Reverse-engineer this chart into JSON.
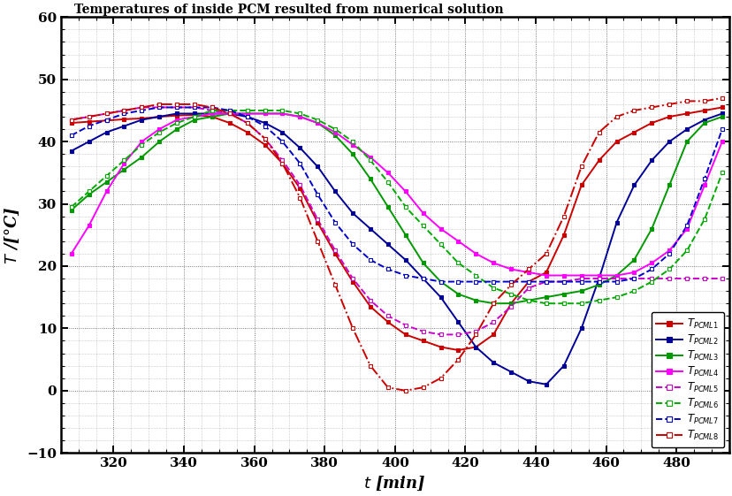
{
  "title": "Temperatures of inside PCM resulted from numerical solution",
  "xlabel": "t [min]",
  "ylabel": "T /[°C]",
  "xlim": [
    305,
    495
  ],
  "ylim": [
    -10,
    60
  ],
  "xticks": [
    320,
    340,
    360,
    380,
    400,
    420,
    440,
    460,
    480
  ],
  "yticks": [
    -10,
    0,
    10,
    20,
    30,
    40,
    50,
    60
  ],
  "series": [
    {
      "label": "PCML1",
      "color": "#CC0000",
      "linestyle": "-",
      "markerfacecolor": "#CC0000",
      "markeredgecolor": "#CC0000",
      "filled": true,
      "x": [
        308,
        313,
        318,
        323,
        328,
        333,
        338,
        343,
        348,
        353,
        358,
        363,
        368,
        373,
        378,
        383,
        388,
        393,
        398,
        403,
        408,
        413,
        418,
        423,
        428,
        433,
        438,
        443,
        448,
        453,
        458,
        463,
        468,
        473,
        478,
        483,
        488,
        493
      ],
      "y": [
        43.0,
        43.2,
        43.4,
        43.6,
        43.7,
        44.0,
        44.2,
        44.3,
        44.0,
        43.0,
        41.5,
        39.5,
        36.5,
        32.5,
        27.0,
        22.0,
        17.5,
        13.5,
        11.0,
        9.0,
        8.0,
        7.0,
        6.5,
        7.0,
        9.0,
        14.0,
        17.5,
        19.0,
        25.0,
        33.0,
        37.0,
        40.0,
        41.5,
        43.0,
        44.0,
        44.5,
        45.0,
        45.5
      ]
    },
    {
      "label": "PCML2",
      "color": "#000099",
      "linestyle": "-",
      "markerfacecolor": "#000099",
      "markeredgecolor": "#000099",
      "filled": true,
      "x": [
        308,
        313,
        318,
        323,
        328,
        333,
        338,
        343,
        348,
        353,
        358,
        363,
        368,
        373,
        378,
        383,
        388,
        393,
        398,
        403,
        408,
        413,
        418,
        423,
        428,
        433,
        438,
        443,
        448,
        453,
        458,
        463,
        468,
        473,
        478,
        483,
        488,
        493
      ],
      "y": [
        38.5,
        40.0,
        41.5,
        42.5,
        43.5,
        44.0,
        44.5,
        44.5,
        44.5,
        44.5,
        44.0,
        43.0,
        41.5,
        39.0,
        36.0,
        32.0,
        28.5,
        26.0,
        23.5,
        21.0,
        18.0,
        15.0,
        11.0,
        7.0,
        4.5,
        3.0,
        1.5,
        1.0,
        4.0,
        10.0,
        18.0,
        27.0,
        33.0,
        37.0,
        40.0,
        42.0,
        43.5,
        44.5
      ]
    },
    {
      "label": "PCML3",
      "color": "#009900",
      "linestyle": "-",
      "markerfacecolor": "#009900",
      "markeredgecolor": "#009900",
      "filled": true,
      "x": [
        308,
        313,
        318,
        323,
        328,
        333,
        338,
        343,
        348,
        353,
        358,
        363,
        368,
        373,
        378,
        383,
        388,
        393,
        398,
        403,
        408,
        413,
        418,
        423,
        428,
        433,
        438,
        443,
        448,
        453,
        458,
        463,
        468,
        473,
        478,
        483,
        488,
        493
      ],
      "y": [
        29.0,
        31.5,
        33.5,
        35.5,
        37.5,
        40.0,
        42.0,
        43.5,
        44.0,
        44.5,
        44.5,
        44.5,
        44.5,
        44.0,
        43.0,
        41.0,
        38.0,
        34.0,
        29.5,
        25.0,
        20.5,
        17.5,
        15.5,
        14.5,
        14.0,
        14.0,
        14.5,
        15.0,
        15.5,
        16.0,
        17.0,
        18.5,
        21.0,
        26.0,
        33.0,
        40.0,
        43.0,
        44.0
      ]
    },
    {
      "label": "PCML4",
      "color": "#FF00FF",
      "linestyle": "-",
      "markerfacecolor": "#FF00FF",
      "markeredgecolor": "#FF00FF",
      "filled": true,
      "x": [
        308,
        313,
        318,
        323,
        328,
        333,
        338,
        343,
        348,
        353,
        358,
        363,
        368,
        373,
        378,
        383,
        388,
        393,
        398,
        403,
        408,
        413,
        418,
        423,
        428,
        433,
        438,
        443,
        448,
        453,
        458,
        463,
        468,
        473,
        478,
        483,
        488,
        493
      ],
      "y": [
        22.0,
        26.5,
        32.0,
        36.5,
        40.0,
        42.0,
        43.5,
        44.0,
        44.5,
        44.5,
        44.5,
        44.5,
        44.5,
        44.0,
        43.0,
        41.5,
        39.5,
        37.5,
        35.0,
        32.0,
        28.5,
        26.0,
        24.0,
        22.0,
        20.5,
        19.5,
        19.0,
        18.5,
        18.5,
        18.5,
        18.5,
        18.5,
        19.0,
        20.5,
        22.5,
        26.0,
        33.0,
        40.0
      ]
    },
    {
      "label": "PCML5",
      "color": "#CC00CC",
      "linestyle": "--",
      "markerfacecolor": "white",
      "markeredgecolor": "#CC00CC",
      "filled": false,
      "x": [
        308,
        313,
        318,
        323,
        328,
        333,
        338,
        343,
        348,
        353,
        358,
        363,
        368,
        373,
        378,
        383,
        388,
        393,
        398,
        403,
        408,
        413,
        418,
        423,
        428,
        433,
        438,
        443,
        448,
        453,
        458,
        463,
        468,
        473,
        478,
        483,
        488,
        493
      ],
      "y": [
        43.5,
        44.0,
        44.5,
        45.0,
        45.5,
        45.5,
        45.5,
        45.5,
        45.0,
        44.5,
        43.0,
        40.5,
        37.0,
        33.0,
        27.5,
        22.5,
        18.0,
        14.5,
        12.0,
        10.5,
        9.5,
        9.0,
        9.0,
        9.5,
        11.0,
        13.5,
        16.5,
        17.5,
        17.5,
        18.0,
        18.0,
        18.0,
        18.0,
        18.0,
        18.0,
        18.0,
        18.0,
        18.0
      ]
    },
    {
      "label": "PCML6",
      "color": "#00AA00",
      "linestyle": "--",
      "markerfacecolor": "white",
      "markeredgecolor": "#00AA00",
      "filled": false,
      "x": [
        308,
        313,
        318,
        323,
        328,
        333,
        338,
        343,
        348,
        353,
        358,
        363,
        368,
        373,
        378,
        383,
        388,
        393,
        398,
        403,
        408,
        413,
        418,
        423,
        428,
        433,
        438,
        443,
        448,
        453,
        458,
        463,
        468,
        473,
        478,
        483,
        488,
        493
      ],
      "y": [
        29.5,
        32.0,
        34.5,
        37.0,
        39.5,
        41.5,
        43.0,
        44.0,
        45.0,
        45.0,
        45.0,
        45.0,
        45.0,
        44.5,
        43.5,
        42.0,
        40.0,
        37.0,
        33.5,
        29.5,
        26.5,
        23.5,
        20.5,
        18.5,
        16.5,
        15.5,
        14.5,
        14.0,
        14.0,
        14.0,
        14.5,
        15.0,
        16.0,
        17.5,
        19.5,
        22.5,
        27.5,
        35.0
      ]
    },
    {
      "label": "PCML7",
      "color": "#0000CC",
      "linestyle": "--",
      "markerfacecolor": "white",
      "markeredgecolor": "#0000CC",
      "filled": false,
      "x": [
        308,
        313,
        318,
        323,
        328,
        333,
        338,
        343,
        348,
        353,
        358,
        363,
        368,
        373,
        378,
        383,
        388,
        393,
        398,
        403,
        408,
        413,
        418,
        423,
        428,
        433,
        438,
        443,
        448,
        453,
        458,
        463,
        468,
        473,
        478,
        483,
        488,
        493
      ],
      "y": [
        41.0,
        42.5,
        43.5,
        44.5,
        45.0,
        45.5,
        45.5,
        45.5,
        45.5,
        45.0,
        44.0,
        42.5,
        40.0,
        36.5,
        31.5,
        27.0,
        23.5,
        21.0,
        19.5,
        18.5,
        18.0,
        17.5,
        17.5,
        17.5,
        17.5,
        17.5,
        17.5,
        17.5,
        17.5,
        17.5,
        17.5,
        17.5,
        18.0,
        19.5,
        22.0,
        26.5,
        34.0,
        42.0
      ]
    },
    {
      "label": "PCML8",
      "color": "#CC0000",
      "linestyle": "-.",
      "markerfacecolor": "white",
      "markeredgecolor": "#CC0000",
      "filled": false,
      "x": [
        308,
        313,
        318,
        323,
        328,
        333,
        338,
        343,
        348,
        353,
        358,
        363,
        368,
        373,
        378,
        383,
        388,
        393,
        398,
        403,
        408,
        413,
        418,
        423,
        428,
        433,
        438,
        443,
        448,
        453,
        458,
        463,
        468,
        473,
        478,
        483,
        488,
        493
      ],
      "y": [
        43.5,
        44.0,
        44.5,
        45.0,
        45.5,
        46.0,
        46.0,
        46.0,
        45.5,
        44.5,
        43.0,
        40.5,
        36.5,
        31.0,
        24.0,
        17.0,
        10.0,
        4.0,
        0.5,
        0.0,
        0.5,
        2.0,
        5.0,
        9.0,
        14.0,
        17.0,
        19.5,
        22.0,
        28.0,
        36.0,
        41.5,
        44.0,
        45.0,
        45.5,
        46.0,
        46.5,
        46.5,
        47.0
      ]
    }
  ],
  "background_color": "white"
}
